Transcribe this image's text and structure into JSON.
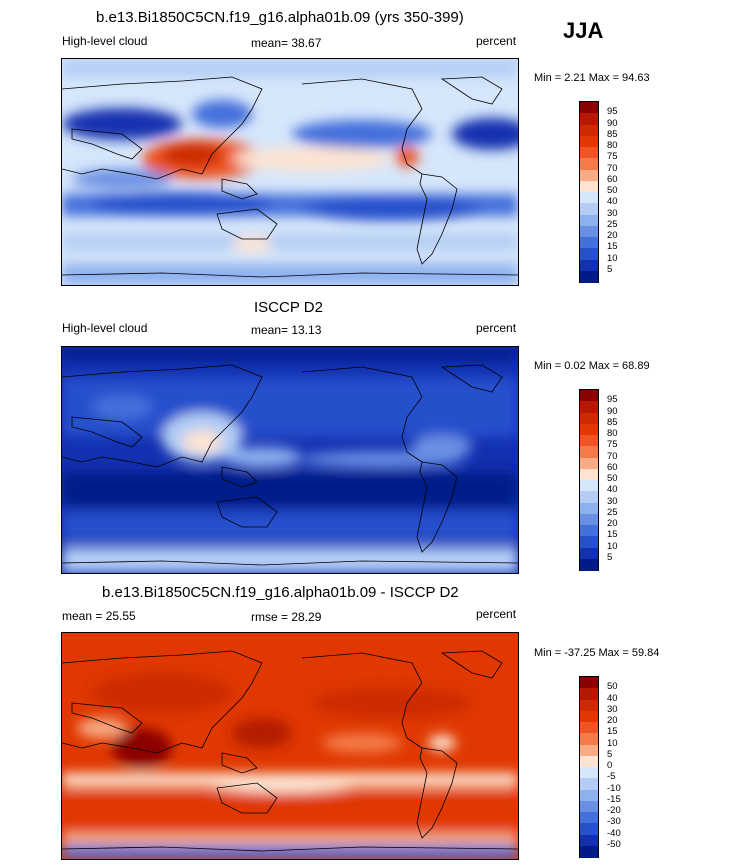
{
  "season": "JJA",
  "panels": [
    {
      "title": "b.e13.Bi1850C5CN.f19_g16.alpha01b.09 (yrs 350-399)",
      "left_label": "High-level cloud",
      "center_label": "mean=  38.67",
      "right_label": "percent",
      "minmax": "Min =   2.21 Max =  94.63",
      "palette": "model",
      "colorbar_labels": [
        "95",
        "90",
        "85",
        "80",
        "75",
        "70",
        "60",
        "50",
        "40",
        "30",
        "25",
        "20",
        "15",
        "10",
        "5"
      ],
      "colorbar_colors": [
        "#8b0000",
        "#b31a00",
        "#cc2a00",
        "#e03800",
        "#ee5522",
        "#f47a4a",
        "#f8ab85",
        "#fde4d2",
        "#d6e6fb",
        "#b3cdf5",
        "#8db0ee",
        "#6a90e4",
        "#4470db",
        "#2650cc",
        "#1230b0",
        "#001a88"
      ]
    },
    {
      "title": "ISCCP D2",
      "left_label": "High-level cloud",
      "center_label": "mean=  13.13",
      "right_label": "percent",
      "minmax": "Min =   0.02 Max =  68.89",
      "palette": "obs",
      "colorbar_labels": [
        "95",
        "90",
        "85",
        "80",
        "75",
        "70",
        "60",
        "50",
        "40",
        "30",
        "25",
        "20",
        "15",
        "10",
        "5"
      ],
      "colorbar_colors": [
        "#8b0000",
        "#b31a00",
        "#cc2a00",
        "#e03800",
        "#ee5522",
        "#f47a4a",
        "#f8ab85",
        "#fde4d2",
        "#d6e6fb",
        "#b3cdf5",
        "#8db0ee",
        "#6a90e4",
        "#4470db",
        "#2650cc",
        "#1230b0",
        "#001a88"
      ]
    },
    {
      "title": "b.e13.Bi1850C5CN.f19_g16.alpha01b.09 - ISCCP D2",
      "left_label": "mean =  25.55",
      "center_label": "rmse =  28.29",
      "right_label": "percent",
      "minmax": "Min = -37.25 Max =  59.84",
      "palette": "diff",
      "colorbar_labels": [
        "50",
        "40",
        "30",
        "20",
        "15",
        "10",
        "5",
        "0",
        "-5",
        "-10",
        "-15",
        "-20",
        "-30",
        "-40",
        "-50"
      ],
      "colorbar_colors": [
        "#8b0000",
        "#b31a00",
        "#cc2a00",
        "#e03800",
        "#ee5522",
        "#f47a4a",
        "#f8ab85",
        "#fde4d2",
        "#d6e6fb",
        "#b3cdf5",
        "#8db0ee",
        "#6a90e4",
        "#4470db",
        "#2650cc",
        "#1230b0",
        "#001a88"
      ]
    }
  ],
  "chart_data": [
    {
      "type": "heatmap",
      "title": "b.e13.Bi1850C5CN.f19_g16.alpha01b.09 (yrs 350-399)",
      "variable": "High-level cloud",
      "units": "percent",
      "mean": 38.67,
      "min": 2.21,
      "max": 94.63,
      "levels": [
        5,
        10,
        15,
        20,
        25,
        30,
        40,
        50,
        60,
        70,
        75,
        80,
        85,
        90,
        95
      ]
    },
    {
      "type": "heatmap",
      "title": "ISCCP D2",
      "variable": "High-level cloud",
      "units": "percent",
      "mean": 13.13,
      "min": 0.02,
      "max": 68.89,
      "levels": [
        5,
        10,
        15,
        20,
        25,
        30,
        40,
        50,
        60,
        70,
        75,
        80,
        85,
        90,
        95
      ]
    },
    {
      "type": "heatmap",
      "title": "b.e13.Bi1850C5CN.f19_g16.alpha01b.09 - ISCCP D2",
      "units": "percent",
      "mean": 25.55,
      "rmse": 28.29,
      "min": -37.25,
      "max": 59.84,
      "levels": [
        -50,
        -40,
        -30,
        -20,
        -15,
        -10,
        -5,
        0,
        5,
        10,
        15,
        20,
        30,
        40,
        50
      ]
    }
  ]
}
